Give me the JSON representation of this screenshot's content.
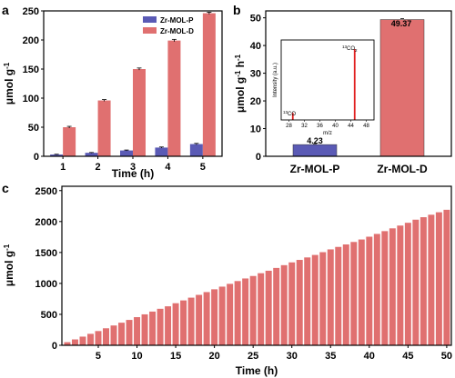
{
  "colors": {
    "p": "#5a5ab5",
    "d": "#e07070",
    "inset": "#e01e1e",
    "axis": "#000000"
  },
  "panels": {
    "a": {
      "letter": "a"
    },
    "b": {
      "letter": "b"
    },
    "c": {
      "letter": "c"
    }
  },
  "chart_data": [
    {
      "panel": "a",
      "type": "bar",
      "categories": [
        "1",
        "2",
        "3",
        "4",
        "5"
      ],
      "series": [
        {
          "name": "Zr-MOL-P",
          "values": [
            3,
            6,
            10,
            15,
            21
          ],
          "errors": [
            0.5,
            0.5,
            0.8,
            1.0,
            1.2
          ]
        },
        {
          "name": "Zr-MOL-D",
          "values": [
            50,
            96,
            150,
            199,
            246
          ],
          "errors": [
            1.5,
            1.5,
            1.8,
            2.0,
            1.8
          ]
        }
      ],
      "xlabel": "Time (h)",
      "ylabel_parts": [
        "μmol g",
        "-1"
      ],
      "ylim": [
        0,
        250
      ],
      "yticks": [
        0,
        50,
        100,
        150,
        200,
        250
      ],
      "legend": "top-left"
    },
    {
      "panel": "b",
      "type": "bar",
      "categories": [
        "Zr-MOL-P",
        "Zr-MOL-D"
      ],
      "values": [
        4.23,
        49.37
      ],
      "labels": [
        "4.23",
        "49.37"
      ],
      "ylabel_parts": [
        "μmol g",
        "-1",
        " h",
        "-1"
      ],
      "ylim": [
        0,
        50
      ],
      "yticks": [
        0,
        10,
        20,
        30,
        40,
        50
      ],
      "inset": {
        "type": "bar",
        "x": [
          29,
          45
        ],
        "values": [
          0.1,
          1.0
        ],
        "peak_labels": [
          {
            "sup": "13",
            "base": "CO",
            "sub": ""
          },
          {
            "sup": "13",
            "base": "CO",
            "sub": "2"
          }
        ],
        "xlabel": "m/z",
        "ylabel": "Intensity (a.u.)",
        "xlim": [
          26,
          50
        ],
        "xticks": [
          28,
          32,
          36,
          40,
          44,
          48
        ]
      }
    },
    {
      "panel": "c",
      "type": "bar",
      "x": [
        1,
        2,
        3,
        4,
        5,
        6,
        7,
        8,
        9,
        10,
        11,
        12,
        13,
        14,
        15,
        16,
        17,
        18,
        19,
        20,
        21,
        22,
        23,
        24,
        25,
        26,
        27,
        28,
        29,
        30,
        31,
        32,
        33,
        34,
        35,
        36,
        37,
        38,
        39,
        40,
        41,
        42,
        43,
        44,
        45,
        46,
        47,
        48,
        49,
        50
      ],
      "values": [
        50,
        95,
        140,
        185,
        230,
        275,
        320,
        365,
        410,
        455,
        500,
        545,
        590,
        630,
        680,
        725,
        770,
        815,
        860,
        905,
        948,
        993,
        1038,
        1080,
        1120,
        1165,
        1205,
        1250,
        1295,
        1340,
        1380,
        1420,
        1460,
        1505,
        1550,
        1590,
        1630,
        1670,
        1710,
        1755,
        1800,
        1845,
        1890,
        1935,
        1980,
        2030,
        2070,
        2110,
        2150,
        2190
      ],
      "xlabel": "Time (h)",
      "ylabel_parts": [
        "μmol g",
        "-1"
      ],
      "ylim": [
        0,
        2500
      ],
      "yticks": [
        0,
        500,
        1000,
        1500,
        2000,
        2500
      ],
      "xticks": [
        5,
        10,
        15,
        20,
        25,
        30,
        35,
        40,
        45,
        50
      ]
    }
  ]
}
